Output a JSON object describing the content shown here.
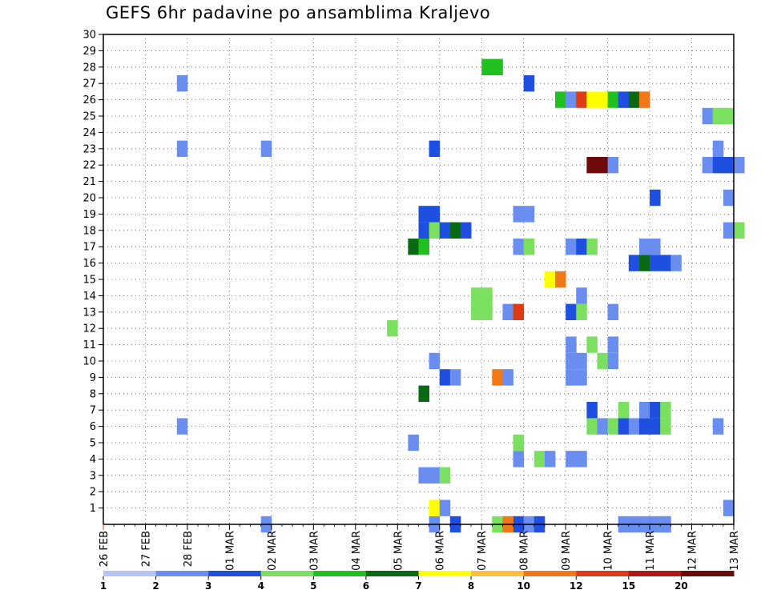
{
  "chart_data": {
    "type": "heatmap",
    "title": "GEFS 6hr padavine po ansamblima Kraljevo",
    "x_labels": [
      "26 FEB",
      "27 FEB",
      "28 FEB",
      "01 MAR",
      "02 MAR",
      "03 MAR",
      "04 MAR",
      "05 MAR",
      "06 MAR",
      "07 MAR",
      "08 MAR",
      "09 MAR",
      "10 MAR",
      "11 MAR",
      "12 MAR",
      "13 MAR"
    ],
    "xlim_days": [
      0,
      15
    ],
    "time_step_hours": 6,
    "y_ticks": [
      1,
      2,
      3,
      4,
      5,
      6,
      7,
      8,
      9,
      10,
      11,
      12,
      13,
      14,
      15,
      16,
      17,
      18,
      19,
      20,
      21,
      22,
      23,
      24,
      25,
      26,
      27,
      28,
      29,
      30
    ],
    "ylim": [
      0,
      30
    ],
    "grid": true,
    "legend": {
      "placement": "bottom",
      "labels": [
        "1",
        "2",
        "3",
        "4",
        "5",
        "6",
        "7",
        "8",
        "10",
        "12",
        "15",
        "20"
      ],
      "colors": [
        "#b4c6f4",
        "#6a8ef0",
        "#1e4fe0",
        "#7be060",
        "#20c020",
        "#0a6a14",
        "#ffff00",
        "#ffbe3c",
        "#f07818",
        "#e03c14",
        "#b41414",
        "#6e0a0a"
      ]
    },
    "cells": [
      {
        "member": 0,
        "step": 31,
        "class": 1
      },
      {
        "member": 0,
        "step": 33,
        "class": 2
      },
      {
        "member": 0,
        "step": 37,
        "class": 3
      },
      {
        "member": 0,
        "step": 39,
        "class": 2
      },
      {
        "member": 0,
        "step": 40,
        "class": 1
      },
      {
        "member": 0,
        "step": 41,
        "class": 2
      },
      {
        "member": 0,
        "step": 49,
        "class": 1
      },
      {
        "member": 0,
        "step": 50,
        "class": 1
      },
      {
        "member": 0,
        "step": 51,
        "class": 1
      },
      {
        "member": 0,
        "step": 52,
        "class": 1
      },
      {
        "member": 0,
        "step": 53,
        "class": 3
      },
      {
        "member": 0,
        "step": 15,
        "class": 1
      },
      {
        "member": 0,
        "step": 38,
        "class": 8
      },
      {
        "member": 0,
        "step": 53,
        "class": 1
      },
      {
        "member": 1,
        "step": 31,
        "class": 6
      },
      {
        "member": 1,
        "step": 32,
        "class": 1
      },
      {
        "member": 1,
        "step": 59,
        "class": 1
      },
      {
        "member": 3,
        "step": 30,
        "class": 1
      },
      {
        "member": 3,
        "step": 31,
        "class": 1
      },
      {
        "member": 3,
        "step": 32,
        "class": 3
      },
      {
        "member": 4,
        "step": 39,
        "class": 1
      },
      {
        "member": 4,
        "step": 41,
        "class": 3
      },
      {
        "member": 4,
        "step": 42,
        "class": 1
      },
      {
        "member": 4,
        "step": 44,
        "class": 1
      },
      {
        "member": 4,
        "step": 45,
        "class": 1
      },
      {
        "member": 5,
        "step": 29,
        "class": 1
      },
      {
        "member": 5,
        "step": 39,
        "class": 3
      },
      {
        "member": 6,
        "step": 7,
        "class": 1
      },
      {
        "member": 6,
        "step": 46,
        "class": 3
      },
      {
        "member": 6,
        "step": 47,
        "class": 1
      },
      {
        "member": 6,
        "step": 48,
        "class": 3
      },
      {
        "member": 6,
        "step": 49,
        "class": 2
      },
      {
        "member": 6,
        "step": 50,
        "class": 1
      },
      {
        "member": 6,
        "step": 51,
        "class": 2
      },
      {
        "member": 6,
        "step": 52,
        "class": 2
      },
      {
        "member": 6,
        "step": 53,
        "class": 3
      },
      {
        "member": 6,
        "step": 58,
        "class": 1
      },
      {
        "member": 7,
        "step": 46,
        "class": 2
      },
      {
        "member": 7,
        "step": 49,
        "class": 3
      },
      {
        "member": 7,
        "step": 51,
        "class": 1
      },
      {
        "member": 7,
        "step": 52,
        "class": 2
      },
      {
        "member": 7,
        "step": 53,
        "class": 3
      },
      {
        "member": 8,
        "step": 30,
        "class": 5
      },
      {
        "member": 9,
        "step": 32,
        "class": 2
      },
      {
        "member": 9,
        "step": 33,
        "class": 1
      },
      {
        "member": 9,
        "step": 37,
        "class": 8
      },
      {
        "member": 9,
        "step": 38,
        "class": 1
      },
      {
        "member": 9,
        "step": 44,
        "class": 1
      },
      {
        "member": 9,
        "step": 45,
        "class": 1
      },
      {
        "member": 10,
        "step": 31,
        "class": 1
      },
      {
        "member": 10,
        "step": 44,
        "class": 1
      },
      {
        "member": 10,
        "step": 45,
        "class": 1
      },
      {
        "member": 10,
        "step": 47,
        "class": 3
      },
      {
        "member": 10,
        "step": 48,
        "class": 1
      },
      {
        "member": 11,
        "step": 44,
        "class": 1
      },
      {
        "member": 11,
        "step": 46,
        "class": 3
      },
      {
        "member": 11,
        "step": 48,
        "class": 1
      },
      {
        "member": 12,
        "step": 27,
        "class": 3
      },
      {
        "member": 13,
        "step": 35,
        "class": 3
      },
      {
        "member": 13,
        "step": 36,
        "class": 3
      },
      {
        "member": 13,
        "step": 38,
        "class": 1
      },
      {
        "member": 13,
        "step": 39,
        "class": 9
      },
      {
        "member": 13,
        "step": 44,
        "class": 2
      },
      {
        "member": 13,
        "step": 45,
        "class": 3
      },
      {
        "member": 13,
        "step": 48,
        "class": 1
      },
      {
        "member": 14,
        "step": 35,
        "class": 3
      },
      {
        "member": 14,
        "step": 36,
        "class": 3
      },
      {
        "member": 14,
        "step": 45,
        "class": 1
      },
      {
        "member": 15,
        "step": 42,
        "class": 6
      },
      {
        "member": 15,
        "step": 43,
        "class": 8
      },
      {
        "member": 16,
        "step": 50,
        "class": 2
      },
      {
        "member": 16,
        "step": 51,
        "class": 5
      },
      {
        "member": 16,
        "step": 52,
        "class": 2
      },
      {
        "member": 16,
        "step": 53,
        "class": 2
      },
      {
        "member": 16,
        "step": 54,
        "class": 1
      },
      {
        "member": 17,
        "step": 29,
        "class": 5
      },
      {
        "member": 17,
        "step": 30,
        "class": 4
      },
      {
        "member": 17,
        "step": 39,
        "class": 1
      },
      {
        "member": 17,
        "step": 40,
        "class": 3
      },
      {
        "member": 17,
        "step": 44,
        "class": 1
      },
      {
        "member": 17,
        "step": 45,
        "class": 2
      },
      {
        "member": 17,
        "step": 46,
        "class": 3
      },
      {
        "member": 17,
        "step": 51,
        "class": 1
      },
      {
        "member": 17,
        "step": 52,
        "class": 1
      },
      {
        "member": 18,
        "step": 30,
        "class": 2
      },
      {
        "member": 18,
        "step": 31,
        "class": 3
      },
      {
        "member": 18,
        "step": 32,
        "class": 2
      },
      {
        "member": 18,
        "step": 33,
        "class": 5
      },
      {
        "member": 18,
        "step": 34,
        "class": 2
      },
      {
        "member": 18,
        "step": 59,
        "class": 1
      },
      {
        "member": 18,
        "step": 60,
        "class": 3
      },
      {
        "member": 19,
        "step": 30,
        "class": 2
      },
      {
        "member": 19,
        "step": 31,
        "class": 2
      },
      {
        "member": 19,
        "step": 39,
        "class": 1
      },
      {
        "member": 19,
        "step": 40,
        "class": 1
      },
      {
        "member": 20,
        "step": 52,
        "class": 2
      },
      {
        "member": 20,
        "step": 59,
        "class": 1
      },
      {
        "member": 22,
        "step": 46,
        "class": 11
      },
      {
        "member": 22,
        "step": 47,
        "class": 11
      },
      {
        "member": 22,
        "step": 48,
        "class": 1
      },
      {
        "member": 22,
        "step": 57,
        "class": 1
      },
      {
        "member": 22,
        "step": 58,
        "class": 2
      },
      {
        "member": 22,
        "step": 59,
        "class": 2
      },
      {
        "member": 22,
        "step": 60,
        "class": 1
      },
      {
        "member": 23,
        "step": 7,
        "class": 1
      },
      {
        "member": 23,
        "step": 15,
        "class": 1
      },
      {
        "member": 23,
        "step": 31,
        "class": 2
      },
      {
        "member": 23,
        "step": 58,
        "class": 1
      },
      {
        "member": 25,
        "step": 57,
        "class": 1
      },
      {
        "member": 25,
        "step": 58,
        "class": 3
      },
      {
        "member": 25,
        "step": 59,
        "class": 3
      },
      {
        "member": 26,
        "step": 43,
        "class": 4
      },
      {
        "member": 26,
        "step": 44,
        "class": 1
      },
      {
        "member": 26,
        "step": 45,
        "class": 9
      },
      {
        "member": 26,
        "step": 46,
        "class": 6
      },
      {
        "member": 26,
        "step": 47,
        "class": 6
      },
      {
        "member": 26,
        "step": 48,
        "class": 4
      },
      {
        "member": 26,
        "step": 49,
        "class": 2
      },
      {
        "member": 26,
        "step": 50,
        "class": 5
      },
      {
        "member": 26,
        "step": 51,
        "class": 8
      },
      {
        "member": 27,
        "step": 7,
        "class": 1
      },
      {
        "member": 27,
        "step": 40,
        "class": 2
      },
      {
        "member": 28,
        "step": 36,
        "class": 4
      },
      {
        "member": 28,
        "step": 37,
        "class": 4
      }
    ]
  }
}
